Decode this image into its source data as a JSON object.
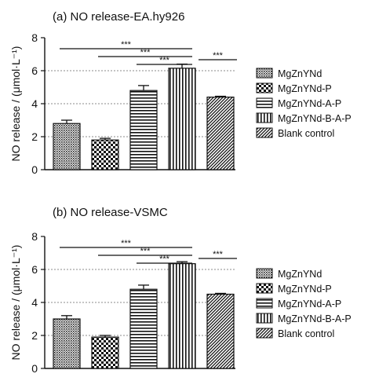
{
  "chart_data": [
    {
      "type": "bar",
      "title": "(a)  NO release-EA.hy926",
      "ylabel": "NO release / (μmol·L⁻¹)",
      "ylim": [
        0,
        8
      ],
      "yticks": [
        "0",
        "2",
        "4",
        "6",
        "8"
      ],
      "grid": "horizontal dashed at 2, 4, 6",
      "legend": "right",
      "series": [
        {
          "name": "MgZnYNd",
          "value": 2.8,
          "error": 0.2,
          "pattern": "dots-dense"
        },
        {
          "name": "MgZnYNd-P",
          "value": 1.8,
          "error": 0.1,
          "pattern": "checker"
        },
        {
          "name": "MgZnYNd-A-P",
          "value": 4.8,
          "error": 0.3,
          "pattern": "horizontal-lines"
        },
        {
          "name": "MgZnYNd-B-A-P",
          "value": 6.15,
          "error": 0.25,
          "pattern": "vertical-lines"
        },
        {
          "name": "Blank control",
          "value": 4.4,
          "error": 0.05,
          "pattern": "diagonal-lines"
        }
      ],
      "significance": [
        {
          "from": 0,
          "to": 3,
          "label": "***"
        },
        {
          "from": 1,
          "to": 3,
          "label": "***"
        },
        {
          "from": 2,
          "to": 3,
          "label": "***"
        },
        {
          "from": 3,
          "to": 4,
          "label": "***"
        }
      ]
    },
    {
      "type": "bar",
      "title": "(b) NO release-VSMC",
      "ylabel": "NO release / (μmol·L⁻¹)",
      "ylim": [
        0,
        8
      ],
      "yticks": [
        "0",
        "2",
        "4",
        "6",
        "8"
      ],
      "grid": "horizontal dashed at 2, 4, 6",
      "legend": "right",
      "series": [
        {
          "name": "MgZnYNd",
          "value": 3.0,
          "error": 0.2,
          "pattern": "dots-dense"
        },
        {
          "name": "MgZnYNd-P",
          "value": 1.9,
          "error": 0.1,
          "pattern": "checker"
        },
        {
          "name": "MgZnYNd-A-P",
          "value": 4.8,
          "error": 0.25,
          "pattern": "horizontal-lines"
        },
        {
          "name": "MgZnYNd-B-A-P",
          "value": 6.35,
          "error": 0.12,
          "pattern": "vertical-lines"
        },
        {
          "name": "Blank control",
          "value": 4.5,
          "error": 0.05,
          "pattern": "diagonal-lines"
        }
      ],
      "significance": [
        {
          "from": 0,
          "to": 3,
          "label": "***"
        },
        {
          "from": 1,
          "to": 3,
          "label": "***"
        },
        {
          "from": 2,
          "to": 3,
          "label": "***"
        },
        {
          "from": 3,
          "to": 4,
          "label": "***"
        }
      ]
    }
  ]
}
